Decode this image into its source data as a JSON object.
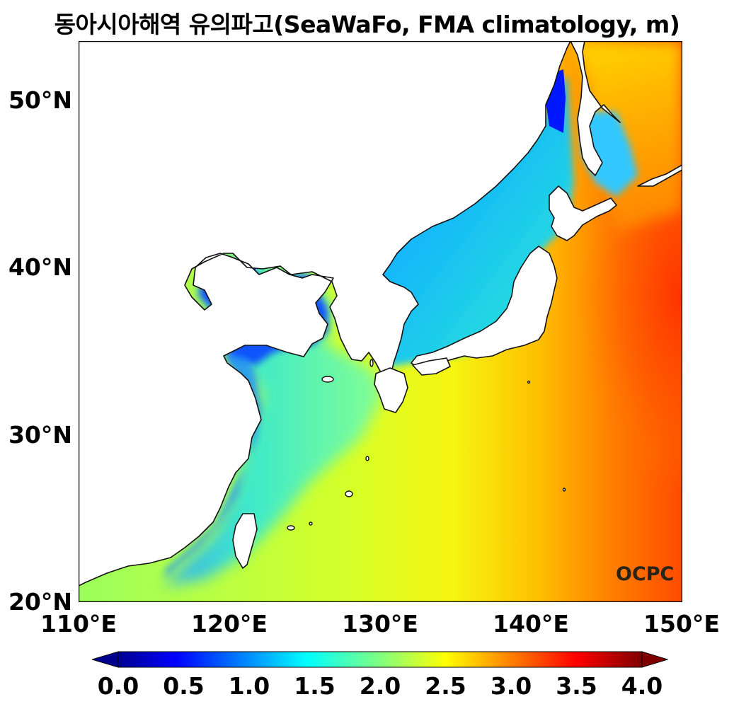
{
  "title": "동아시아해역 유의파고(SeaWaFo, FMA climatology, m)",
  "logo_text": "OCPC",
  "map": {
    "lon_range": [
      110,
      150
    ],
    "lat_range": [
      20,
      53.5
    ],
    "lon_ticks": [
      {
        "value": 110,
        "label": "110°E"
      },
      {
        "value": 120,
        "label": "120°E"
      },
      {
        "value": 130,
        "label": "130°E"
      },
      {
        "value": 140,
        "label": "140°E"
      },
      {
        "value": 150,
        "label": "150°E"
      }
    ],
    "lat_ticks": [
      {
        "value": 20,
        "label": "20°N"
      },
      {
        "value": 30,
        "label": "30°N"
      },
      {
        "value": 40,
        "label": "40°N"
      },
      {
        "value": 50,
        "label": "50°N"
      }
    ]
  },
  "colorbar": {
    "min": 0.0,
    "max": 4.0,
    "colormap": "jet",
    "extend": "both",
    "ticks": [
      "0.0",
      "0.5",
      "1.0",
      "1.5",
      "2.0",
      "2.5",
      "3.0",
      "3.5",
      "4.0"
    ]
  }
}
